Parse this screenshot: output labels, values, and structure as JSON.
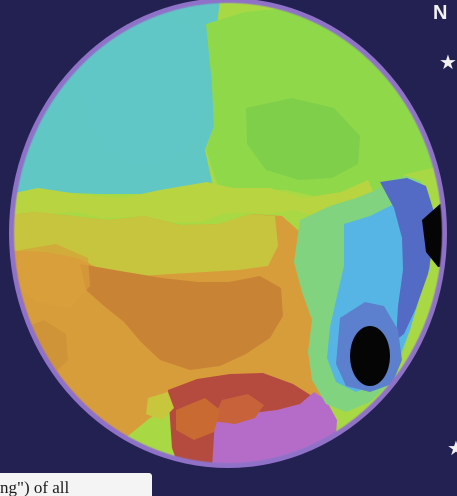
{
  "side_text": {
    "letter": "N",
    "top_mark_icon": "star-icon",
    "bottom_mark_icon": "star-icon"
  },
  "caption": {
    "fragment": "ng\") of all"
  },
  "map": {
    "subject": "circular false-color contour map",
    "palette": {
      "background": "#232152",
      "rim": "#8f72c8",
      "cyan": "#60c7c5",
      "teal_green": "#78cf70",
      "green": "#86d64a",
      "lime": "#a3d941",
      "yellow": "#c8c63d",
      "orange": "#d89d3b",
      "orange_dark": "#c98335",
      "red": "#b54b3e",
      "magenta": "#b56cc9",
      "sky": "#57b5e5",
      "blue": "#536bc4",
      "black": "#050505"
    }
  }
}
